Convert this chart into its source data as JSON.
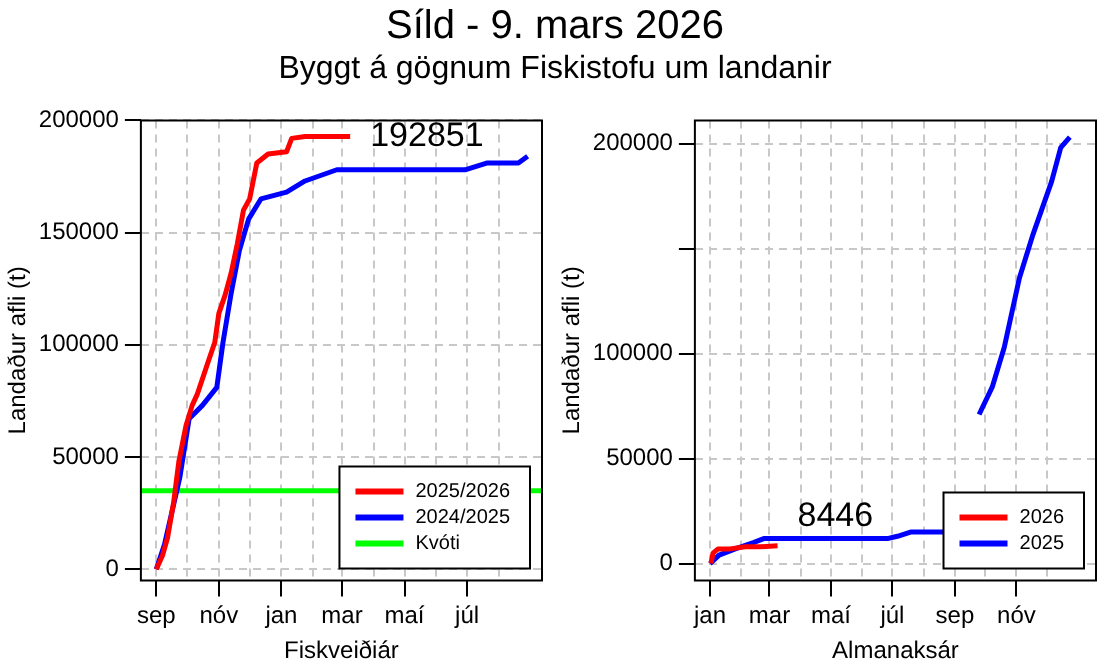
{
  "chart_data": [
    {
      "type": "line",
      "title": "Síld -  9. mars 2026",
      "subtitle": "Byggt á gögnum Fiskistofu um landanir",
      "xlabel": "Fiskveiðiár",
      "ylabel": "Landaður afli (t)",
      "xlim": [
        "2025-08-17",
        "2026-09-12"
      ],
      "xticks": [
        {
          "value": "2025-09-01",
          "label": "sep"
        },
        {
          "value": "2025-10-01",
          "label": null
        },
        {
          "value": "2025-11-01",
          "label": "nóv"
        },
        {
          "value": "2025-12-01",
          "label": null
        },
        {
          "value": "2026-01-01",
          "label": "jan"
        },
        {
          "value": "2026-02-01",
          "label": null
        },
        {
          "value": "2026-03-01",
          "label": "mar"
        },
        {
          "value": "2026-04-01",
          "label": null
        },
        {
          "value": "2026-05-01",
          "label": "maí"
        },
        {
          "value": "2026-06-01",
          "label": null
        },
        {
          "value": "2026-07-01",
          "label": "júl"
        },
        {
          "value": "2026-08-01",
          "label": null
        }
      ],
      "ylim": [
        -5000,
        200000
      ],
      "yticks": [
        0,
        50000,
        100000,
        150000,
        200000
      ],
      "grid": true,
      "legend": "bottom right",
      "series": [
        {
          "name": "2025/2026",
          "color": "#ff0000",
          "x": [
            "2025-09-01",
            "2025-09-07",
            "2025-09-12",
            "2025-09-18",
            "2025-09-23",
            "2025-09-30",
            "2025-10-06",
            "2025-10-11",
            "2025-10-22",
            "2025-10-28",
            "2025-11-01",
            "2025-11-07",
            "2025-11-13",
            "2025-11-19",
            "2025-11-25",
            "2025-12-01",
            "2025-12-08",
            "2025-12-19",
            "2026-01-06",
            "2026-01-11",
            "2026-01-24",
            "2026-03-09"
          ],
          "values": [
            0,
            6000,
            14000,
            30000,
            48000,
            64000,
            73000,
            78000,
            93000,
            101000,
            114000,
            122000,
            132000,
            145000,
            160000,
            165000,
            181000,
            185000,
            186000,
            192000,
            192851,
            192851
          ]
        },
        {
          "name": "2024/2025",
          "color": "#0000ff",
          "x": [
            "2025-09-01",
            "2025-09-09",
            "2025-09-15",
            "2025-09-24",
            "2025-10-03",
            "2025-10-16",
            "2025-10-30",
            "2025-11-05",
            "2025-11-13",
            "2025-11-21",
            "2025-11-30",
            "2025-12-12",
            "2026-01-06",
            "2026-01-24",
            "2026-02-24",
            "2026-06-29",
            "2026-07-20",
            "2026-08-20",
            "2026-08-29"
          ],
          "values": [
            0,
            11000,
            23000,
            41000,
            67000,
            73000,
            81000,
            101000,
            123000,
            142000,
            156000,
            165000,
            168000,
            173000,
            178000,
            178000,
            181000,
            181000,
            184000
          ]
        },
        {
          "name": "Kvóti",
          "color": "#00ff00",
          "x": [
            "2025-08-17",
            "2026-09-12"
          ],
          "values": [
            35000,
            35000
          ]
        }
      ],
      "annotations": [
        {
          "text": "192851",
          "x": "2026-03-09",
          "y": 192851
        }
      ]
    },
    {
      "type": "line",
      "xlabel": "Almanaksár",
      "ylabel": "Landaður afli (t)",
      "xlim": [
        "2025-12-17",
        "2027-01-19"
      ],
      "xticks": [
        {
          "value": "2026-01-01",
          "label": "jan"
        },
        {
          "value": "2026-02-01",
          "label": null
        },
        {
          "value": "2026-03-01",
          "label": "mar"
        },
        {
          "value": "2026-04-01",
          "label": null
        },
        {
          "value": "2026-05-01",
          "label": "maí"
        },
        {
          "value": "2026-06-01",
          "label": null
        },
        {
          "value": "2026-07-01",
          "label": "júl"
        },
        {
          "value": "2026-08-01",
          "label": null
        },
        {
          "value": "2026-09-01",
          "label": "sep"
        },
        {
          "value": "2026-10-01",
          "label": null
        },
        {
          "value": "2026-11-01",
          "label": "nóv"
        },
        {
          "value": "2026-12-01",
          "label": null
        }
      ],
      "ylim": [
        -8000,
        211000
      ],
      "yticks": [
        0,
        50000,
        100000,
        {
          "value": 150000,
          "label": null
        },
        200000
      ],
      "grid": true,
      "legend": "bottom right",
      "series": [
        {
          "name": "2026",
          "color": "#ff0000",
          "x": [
            "2026-01-02",
            "2026-01-04",
            "2026-01-09",
            "2026-01-21",
            "2026-02-05",
            "2026-02-20",
            "2026-03-09"
          ],
          "values": [
            0,
            5000,
            7000,
            7000,
            8000,
            8000,
            8446
          ]
        },
        {
          "name": "2025",
          "color": "#0000ff",
          "x": [
            "2026-01-01",
            "2026-01-10",
            "2026-01-26",
            "2026-02-13",
            "2026-02-24",
            "2026-03-10",
            "2026-06-27",
            "2026-07-06",
            "2026-07-19",
            "2026-08-22",
            "2026-08-31",
            "2026-09-13",
            "2026-09-25",
            "2026-10-08",
            "2026-10-20",
            "2026-11-04",
            "2026-11-17",
            "2026-12-06",
            "2026-12-15",
            "2026-12-24"
          ],
          "values": [
            0,
            4000,
            7000,
            10000,
            12000,
            12000,
            12000,
            13000,
            15000,
            15000,
            null,
            null,
            71000,
            84000,
            103000,
            136000,
            156000,
            182000,
            198000,
            203000
          ]
        }
      ],
      "annotations": [
        {
          "text": "8446",
          "x": "2026-03-09",
          "y": 8446
        }
      ]
    }
  ]
}
